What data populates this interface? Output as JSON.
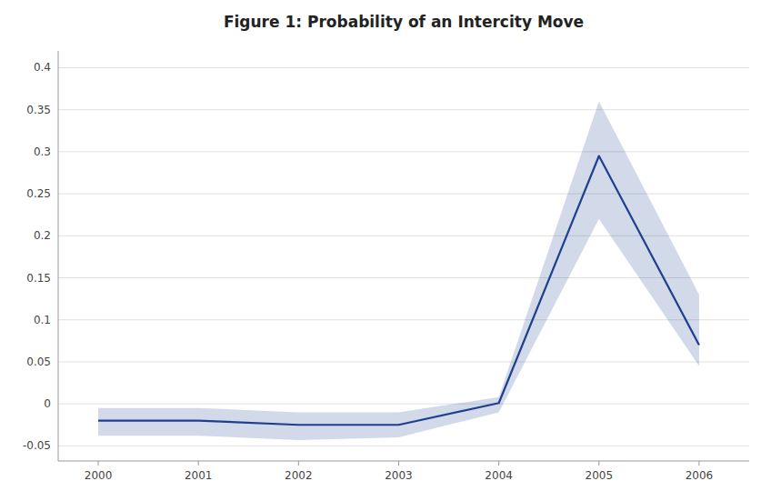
{
  "chart_data": {
    "type": "line",
    "title": "Figure 1: Probability of an Intercity Move",
    "x": [
      2000,
      2001,
      2002,
      2003,
      2004,
      2005,
      2006
    ],
    "values": [
      -0.02,
      -0.02,
      -0.025,
      -0.025,
      0.001,
      0.295,
      0.07
    ],
    "upper": [
      -0.005,
      -0.005,
      -0.01,
      -0.01,
      0.008,
      0.36,
      0.13
    ],
    "lower": [
      -0.038,
      -0.038,
      -0.043,
      -0.04,
      -0.01,
      0.22,
      0.045
    ],
    "color": "#1f3f8f",
    "xlim": [
      1999.6,
      2006.5
    ],
    "ylim": [
      -0.068,
      0.42
    ],
    "xticks": [
      2000,
      2001,
      2002,
      2003,
      2004,
      2005,
      2006
    ],
    "yticks": [
      -0.05,
      0,
      0.05,
      0.1,
      0.15,
      0.2,
      0.25,
      0.3,
      0.35,
      0.4
    ],
    "grid": true
  }
}
